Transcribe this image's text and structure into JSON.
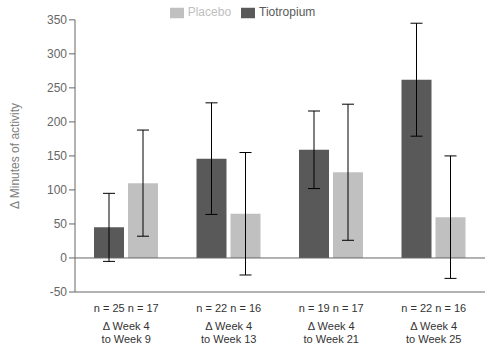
{
  "chart_data": {
    "type": "bar",
    "categories": [
      "Δ Week 4\nto Week 9",
      "Δ Week 4\nto Week 13",
      "Δ Week 4\nto Week 21",
      "Δ Week 4\nto Week 25"
    ],
    "series": [
      {
        "name": "Tiotropium",
        "color": "#595959",
        "values": [
          45,
          146,
          159,
          262
        ],
        "errors": [
          50,
          82,
          57,
          83
        ],
        "n_labels": [
          "n = 25",
          "n = 22",
          "n = 19",
          "n = 22"
        ]
      },
      {
        "name": "Placebo",
        "color": "#c0c0c0",
        "values": [
          110,
          65,
          126,
          60
        ],
        "errors": [
          78,
          90,
          100,
          90
        ],
        "n_labels": [
          "n = 17",
          "n = 16",
          "n = 17",
          "n = 16"
        ]
      }
    ],
    "ylabel": "Δ Minutes of activity",
    "ylim": [
      -50,
      350
    ],
    "yticks": [
      -50,
      0,
      50,
      100,
      150,
      200,
      250,
      300,
      350
    ],
    "grid": false,
    "legend": "top"
  }
}
